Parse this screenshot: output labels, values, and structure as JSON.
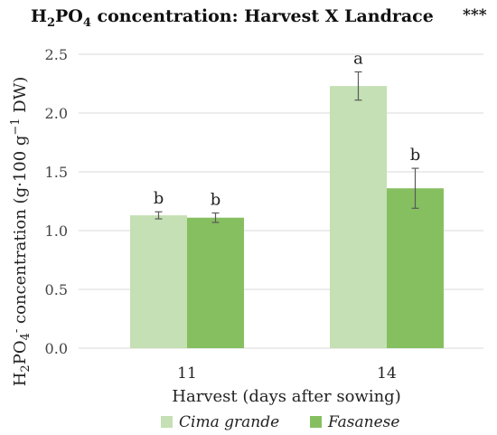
{
  "chart_data": {
    "type": "bar",
    "title": {
      "main": "H",
      "s1": "2",
      "mid": "PO",
      "s2": "4",
      "rest": " concentration:  Harvest X Landrace"
    },
    "significance": "***",
    "xlabel": "Harvest (days after sowing)",
    "ylabel": {
      "p1": "H",
      "s1": "2",
      "p2": "PO",
      "s2": "4",
      "sup": "-",
      "p3": " concentration (g·100 g",
      "sup2": "−1",
      "p4": " DW)"
    },
    "categories": [
      "11",
      "14"
    ],
    "ylim": [
      0,
      2.5
    ],
    "yticks": [
      "0.0",
      "0.5",
      "1.0",
      "1.5",
      "2.0",
      "2.5"
    ],
    "ytick_values": [
      0,
      0.5,
      1.0,
      1.5,
      2.0,
      2.5
    ],
    "grid": true,
    "legend_position": "bottom",
    "series": [
      {
        "name": "Cima grande",
        "color": "#c5e0b4",
        "values": [
          1.13,
          2.23
        ],
        "errors": [
          0.03,
          0.12
        ],
        "labels": [
          "b",
          "a"
        ]
      },
      {
        "name": "Fasanese",
        "color": "#86bf60",
        "values": [
          1.11,
          1.36
        ],
        "errors": [
          0.04,
          0.17
        ],
        "labels": [
          "b",
          "b"
        ]
      }
    ]
  }
}
